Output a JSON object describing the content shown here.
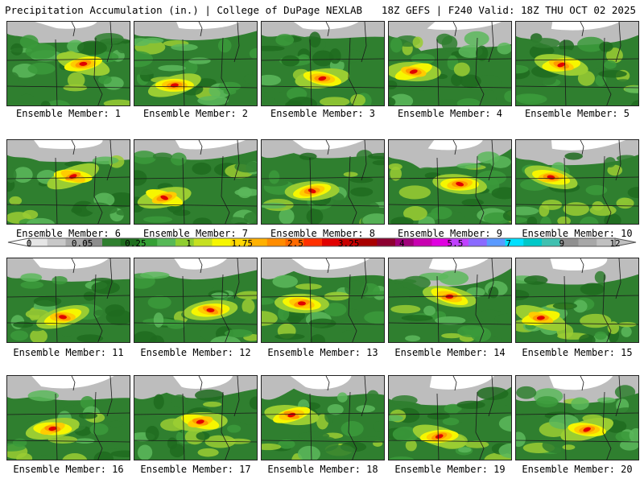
{
  "header": {
    "title": "Precipitation Accumulation (in.) | College of DuPage NEXLAB",
    "valid": "18Z GEFS | F240 Valid: 18Z THU OCT 02 2025"
  },
  "colorbar": {
    "labels": [
      "0",
      "0.05",
      "0.25",
      "1",
      "1.75",
      "2.5",
      "3.25",
      "4",
      "5.5",
      "7",
      "9",
      "12"
    ],
    "colors": [
      "#e6e6e6",
      "#c8c8c8",
      "#a8a8a8",
      "#8c8c8c",
      "#2f7f2f",
      "#1e6e1e",
      "#35a035",
      "#57b957",
      "#8fce30",
      "#c6e020",
      "#f6f600",
      "#ffd700",
      "#ffb000",
      "#ff8c00",
      "#ff6a00",
      "#ff3000",
      "#e00000",
      "#c80000",
      "#a80000",
      "#8c0030",
      "#a0007a",
      "#c800b0",
      "#e000e0",
      "#c040ff",
      "#8a6aff",
      "#5a9aff",
      "#00e0ff",
      "#00c8c8",
      "#40c0b0",
      "#909090",
      "#a8a8a8",
      "#c0c0c0"
    ]
  },
  "panels": [
    {
      "label": "Ensemble Member: 1"
    },
    {
      "label": "Ensemble Member: 2"
    },
    {
      "label": "Ensemble Member: 3"
    },
    {
      "label": "Ensemble Member: 4"
    },
    {
      "label": "Ensemble Member: 5"
    },
    {
      "label": "Ensemble Member: 6"
    },
    {
      "label": "Ensemble Member: 7"
    },
    {
      "label": "Ensemble Member: 8"
    },
    {
      "label": "Ensemble Member: 9"
    },
    {
      "label": "Ensemble Member: 10"
    },
    {
      "label": "Ensemble Member: 11"
    },
    {
      "label": "Ensemble Member: 12"
    },
    {
      "label": "Ensemble Member: 13"
    },
    {
      "label": "Ensemble Member: 14"
    },
    {
      "label": "Ensemble Member: 15"
    },
    {
      "label": "Ensemble Member: 16"
    },
    {
      "label": "Ensemble Member: 17"
    },
    {
      "label": "Ensemble Member: 18"
    },
    {
      "label": "Ensemble Member: 19"
    },
    {
      "label": "Ensemble Member: 20"
    }
  ]
}
